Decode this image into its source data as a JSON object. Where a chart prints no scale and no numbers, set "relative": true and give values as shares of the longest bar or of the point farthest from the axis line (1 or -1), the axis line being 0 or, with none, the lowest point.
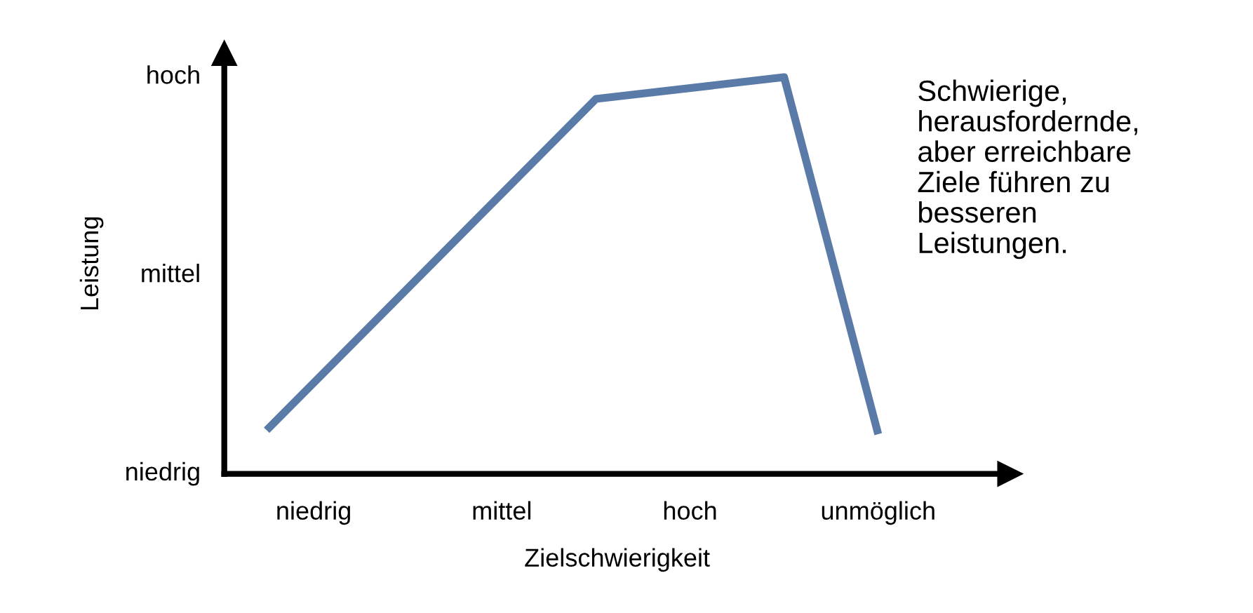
{
  "chart_data": {
    "type": "line",
    "relative": true,
    "xlabel": "Zielschwierigkeit",
    "ylabel": "Leistung",
    "annotations": [
      "Schwierige,\nherausfordernde,\naber erreichbare\nZiele führen zu\nbesseren\nLeistungen.",
      "niedrig",
      "mittel",
      "hoch"
    ],
    "categories": [
      null,
      null,
      "niedrig",
      null,
      null,
      null,
      "mittel",
      null,
      null,
      null,
      "hoch",
      null,
      null,
      null,
      "unmöglich",
      null,
      null
    ],
    "series": [
      {
        "color": "#5a7aa8",
        "values": [
          null,
          0.11,
          null,
          null,
          null,
          null,
          null,
          null,
          0.945,
          null,
          null,
          null,
          1.0,
          null,
          0.1,
          null,
          null
        ]
      }
    ],
    "grid": false,
    "legend": false,
    "marker": "none",
    "line_style": "solid"
  }
}
